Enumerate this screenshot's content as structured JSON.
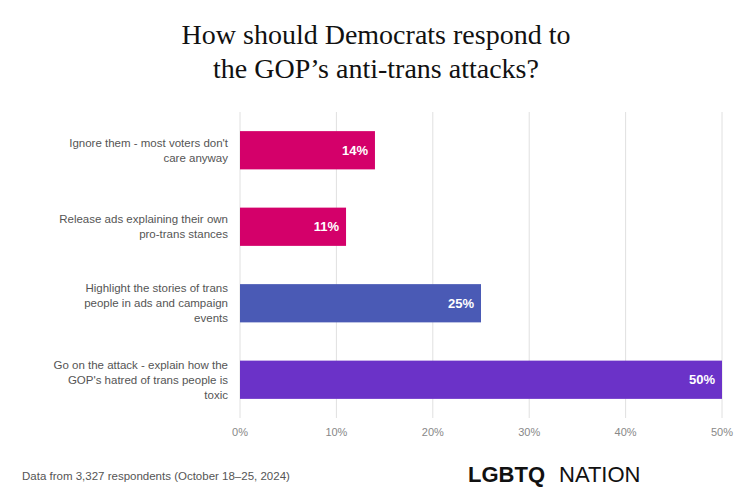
{
  "chart_data": {
    "type": "bar",
    "orientation": "horizontal",
    "title": "How should Democrats respond to\nthe GOP’s anti-trans attacks?",
    "categories": [
      "Ignore them - most voters don't\ncare anyway",
      "Release ads explaining their own\npro-trans stances",
      "Highlight the stories of trans\npeople in ads and campaign\nevents",
      "Go on the attack - explain how the\nGOP's hatred of trans people is\ntoxic"
    ],
    "values": [
      14,
      11,
      25,
      50
    ],
    "value_labels": [
      "14%",
      "11%",
      "25%",
      "50%"
    ],
    "colors": [
      "#d4006a",
      "#d4006a",
      "#4a5ab5",
      "#6b32c8"
    ],
    "xlim": [
      0,
      50
    ],
    "xticks": [
      {
        "value": 0,
        "label": "0%"
      },
      {
        "value": 10,
        "label": "10%"
      },
      {
        "value": 20,
        "label": "20%"
      },
      {
        "value": 30,
        "label": "30%"
      },
      {
        "value": 40,
        "label": "40%"
      },
      {
        "value": 50,
        "label": "50%"
      }
    ],
    "grid": true,
    "data_labels": true,
    "footnote": "Data from 3,327 respondents (October 18–25, 2024)",
    "annotations": [
      "LGBTQ",
      "NATION"
    ]
  }
}
